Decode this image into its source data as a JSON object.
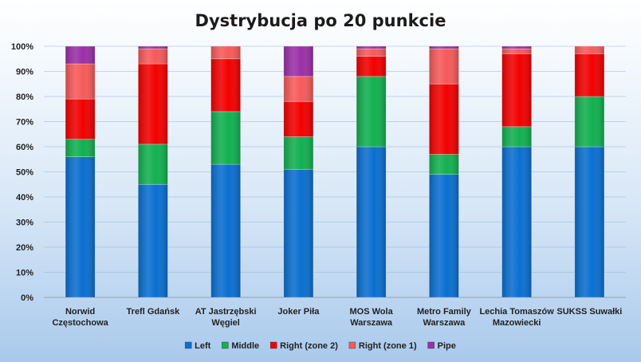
{
  "chart_data": {
    "type": "bar",
    "stacked": true,
    "title": "Dystrybucja po 20 punkcie",
    "categories": [
      [
        "Norwid",
        "Częstochowa"
      ],
      [
        "Trefl Gdańsk"
      ],
      [
        "AT Jastrzębski",
        "Węgiel"
      ],
      [
        "Joker Piła"
      ],
      [
        "MOS Wola",
        "Warszawa"
      ],
      [
        "Metro Family",
        "Warszawa"
      ],
      [
        "Lechia Tomaszów",
        "Mazowiecki"
      ],
      [
        "SUKSS Suwałki"
      ]
    ],
    "series": [
      {
        "name": "Left",
        "color": "#0a6fd0",
        "values": [
          56,
          45,
          53,
          51,
          60,
          49,
          60,
          60
        ]
      },
      {
        "name": "Middle",
        "color": "#12b050",
        "values": [
          7,
          16,
          21,
          13,
          28,
          8,
          8,
          20
        ]
      },
      {
        "name": "Right (zone 2)",
        "color": "#f20000",
        "values": [
          16,
          32,
          21,
          14,
          8,
          28,
          29,
          17
        ]
      },
      {
        "name": "Right (zone 1)",
        "color": "#f65a5a",
        "values": [
          14,
          6,
          5,
          10,
          3,
          14,
          2,
          3
        ]
      },
      {
        "name": "Pipe",
        "color": "#9b2fa7",
        "values": [
          7,
          1,
          0,
          12,
          1,
          1,
          1,
          0
        ]
      }
    ],
    "yticks": [
      "0%",
      "10%",
      "20%",
      "30%",
      "40%",
      "50%",
      "60%",
      "70%",
      "80%",
      "90%",
      "100%"
    ],
    "ylim": [
      0,
      100
    ],
    "grid": true,
    "legend_position": "bottom"
  }
}
